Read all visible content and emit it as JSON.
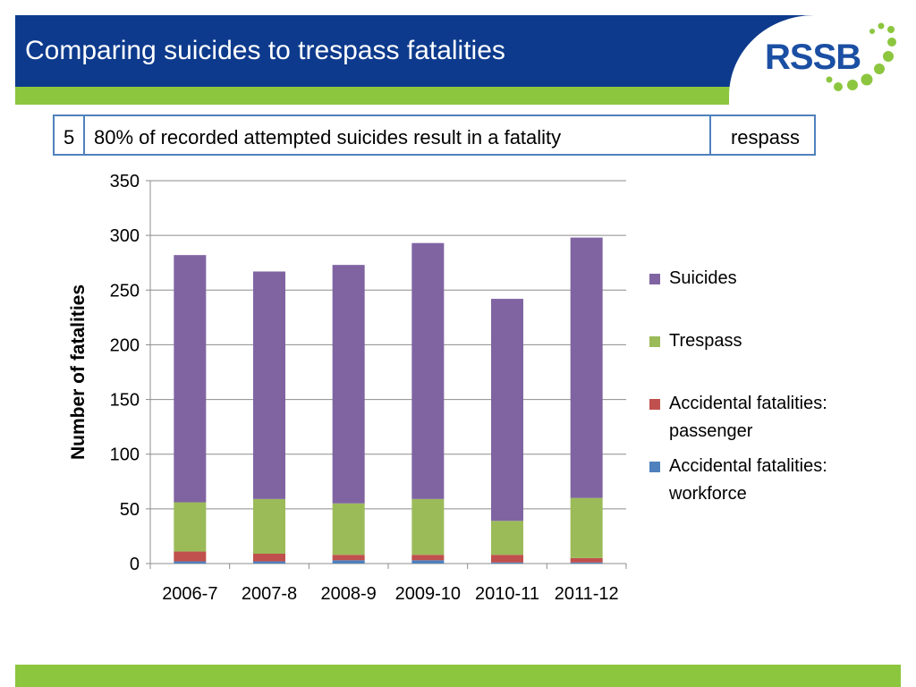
{
  "slide": {
    "title": "Comparing suicides to trespass fatalities",
    "logo_text": "RSSB",
    "callout_back_number": "5",
    "callout_back_tail": "respass",
    "callout_front_text": "80% of recorded attempted suicides result in a fatality"
  },
  "colors": {
    "header": "#0d3a8c",
    "accent_green": "#8cc63f"
  },
  "chart_data": {
    "type": "bar",
    "stacked": true,
    "categories": [
      "2006-7",
      "2007-8",
      "2008-9",
      "2009-10",
      "2010-11",
      "2011-12"
    ],
    "series": [
      {
        "name": "Accidental fatalities: workforce",
        "color": "#4f81bd",
        "values": [
          2,
          2,
          3,
          3,
          1,
          1
        ]
      },
      {
        "name": "Accidental fatalities: passenger",
        "color": "#c0504d",
        "values": [
          9,
          7,
          5,
          5,
          7,
          4
        ]
      },
      {
        "name": "Trespass",
        "color": "#9bbb59",
        "values": [
          45,
          50,
          47,
          51,
          31,
          55
        ]
      },
      {
        "name": "Suicides",
        "color": "#8064a2",
        "values": [
          226,
          208,
          218,
          234,
          203,
          238
        ]
      }
    ],
    "legend_order": [
      "Suicides",
      "Trespass",
      "Accidental fatalities: passenger",
      "Accidental fatalities: workforce"
    ],
    "ylabel": "Number of fatalities",
    "xlabel": "",
    "ylim": [
      0,
      350
    ],
    "yticks": [
      0,
      50,
      100,
      150,
      200,
      250,
      300,
      350
    ],
    "grid": true,
    "legend_position": "right"
  }
}
